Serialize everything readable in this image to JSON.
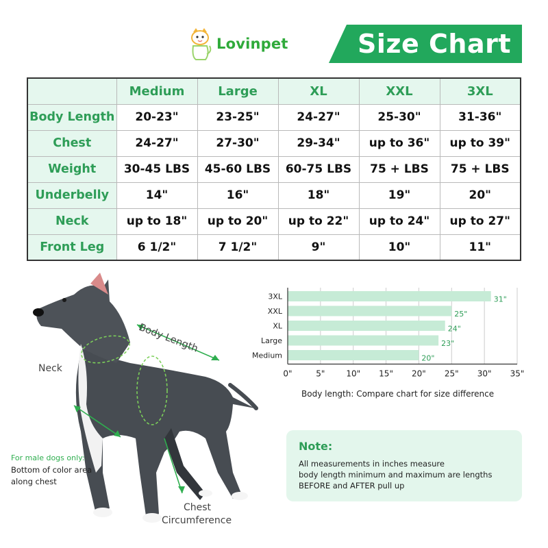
{
  "header": {
    "brand": "Lovinpet",
    "title": "Size Chart",
    "brand_color": "#2faa3a",
    "banner_color": "#22a85c"
  },
  "table": {
    "columns": [
      "Medium",
      "Large",
      "XL",
      "XXL",
      "3XL"
    ],
    "rows": [
      {
        "label": "Body Length",
        "values": [
          "20-23\"",
          "23-25\"",
          "24-27\"",
          "25-30\"",
          "31-36\""
        ]
      },
      {
        "label": "Chest",
        "values": [
          "24-27\"",
          "27-30\"",
          "29-34\"",
          "up to 36\"",
          "up to 39\""
        ]
      },
      {
        "label": "Weight",
        "values": [
          "30-45 LBS",
          "45-60 LBS",
          "60-75 LBS",
          "75 + LBS",
          "75 + LBS"
        ]
      },
      {
        "label": "Underbelly",
        "values": [
          "14\"",
          "16\"",
          "18\"",
          "19\"",
          "20\""
        ]
      },
      {
        "label": "Neck",
        "values": [
          "up to 18\"",
          "up to 20\"",
          "up to 22\"",
          "up to 24\"",
          "up to 27\""
        ]
      },
      {
        "label": "Front Leg",
        "values": [
          "6 1/2\"",
          "7 1/2\"",
          "9\"",
          "10\"",
          "11\""
        ]
      }
    ],
    "header_bg": "#e5f7ee",
    "accent": "#2e9d57"
  },
  "dog_labels": {
    "neck": "Neck",
    "body_length": "Body Length",
    "male_note_1": "For male dogs only:",
    "male_note_2": "Bottom of color area",
    "male_note_3": "along chest",
    "chest_1": "Chest",
    "chest_2": "Circumference"
  },
  "chart_data": {
    "type": "bar",
    "orientation": "horizontal",
    "categories": [
      "3XL",
      "XXL",
      "XL",
      "Large",
      "Medium"
    ],
    "values": [
      31,
      25,
      24,
      23,
      20
    ],
    "value_labels": [
      "31\"",
      "25\"",
      "24\"",
      "23\"",
      "20\""
    ],
    "xticks": [
      "0\"",
      "5\"",
      "10\"",
      "15\"",
      "20\"",
      "25\"",
      "30\"",
      "35\""
    ],
    "xlim": [
      0,
      35
    ],
    "caption": "Body length: Compare chart for size difference",
    "grid": true,
    "bar_color": "#c6ebd6",
    "label_color": "#2e9d57"
  },
  "note": {
    "title": "Note:",
    "lines": [
      "All measurements in inches measure",
      "body length minimum and maximum are lengths",
      "BEFORE and AFTER pull up"
    ],
    "bg": "#e3f6ec"
  }
}
